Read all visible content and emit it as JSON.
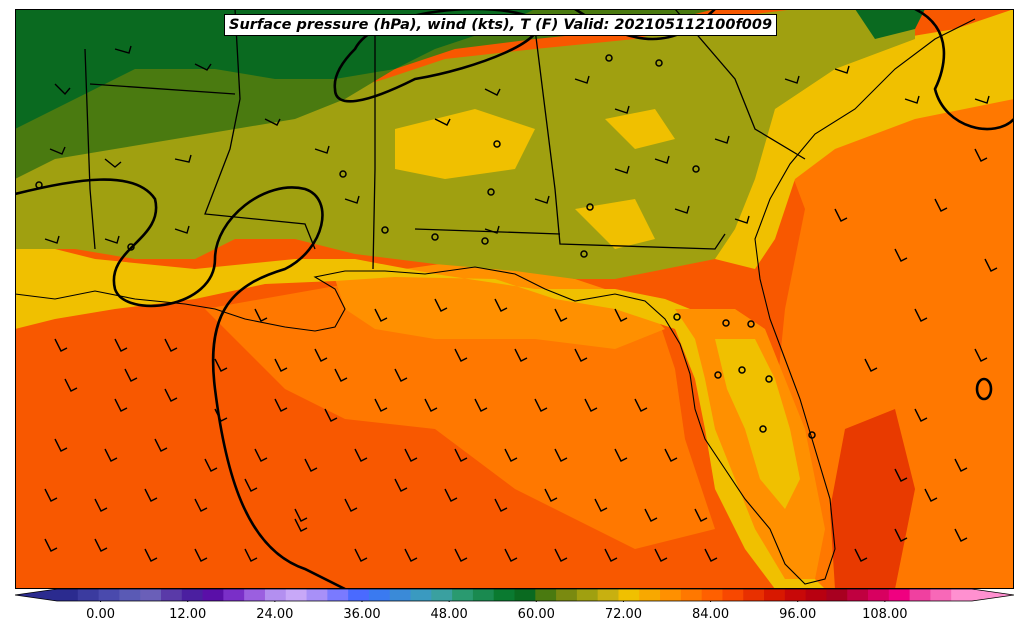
{
  "title": "Surface pressure (hPa), wind (kts), T (F) Valid: 202105112100f009",
  "colorbar": {
    "tick_labels": [
      "0.00",
      "12.00",
      "24.00",
      "36.00",
      "48.00",
      "60.00",
      "72.00",
      "84.00",
      "96.00",
      "108.00"
    ],
    "tick_values": [
      0,
      12,
      24,
      36,
      48,
      60,
      72,
      84,
      96,
      108
    ],
    "min": -6,
    "max": 120,
    "extend": "both",
    "colors": [
      "#2b2b8f",
      "#3b3b9f",
      "#4a4aad",
      "#5a5ab5",
      "#6a5fb8",
      "#5a3aa8",
      "#4b1fa0",
      "#5a0fa8",
      "#7a2fc8",
      "#9b5fe0",
      "#b38ff0",
      "#c8a8f8",
      "#a890f8",
      "#7a7aff",
      "#4a6aff",
      "#3a7af0",
      "#3a8ad8",
      "#3a9ac0",
      "#3aa0a0",
      "#2a9a70",
      "#1a8a50",
      "#0a7a30",
      "#0a6a20",
      "#4a7a10",
      "#7a8a10",
      "#a0a010",
      "#c8b010",
      "#f0c000",
      "#f8a800",
      "#ff9000",
      "#ff7800",
      "#ff6000",
      "#f84800",
      "#e83000",
      "#d81800",
      "#c80808",
      "#b80010",
      "#a80020",
      "#c00040",
      "#d80060",
      "#f00080",
      "#f040a0",
      "#f868b8",
      "#ff90d0"
    ]
  },
  "map": {
    "fill_colors": {
      "dark_green": "#0a6a20",
      "green": "#4a7a10",
      "olive": "#a0a010",
      "yellow": "#f0c000",
      "light_orange": "#ff9000",
      "orange": "#ff7800",
      "dark_orange": "#f85800",
      "red_orange": "#e83a00"
    },
    "layers": [
      "temperature-fill",
      "coastline",
      "state-boundaries",
      "pressure-contours",
      "wind-barbs",
      "station-markers"
    ]
  }
}
